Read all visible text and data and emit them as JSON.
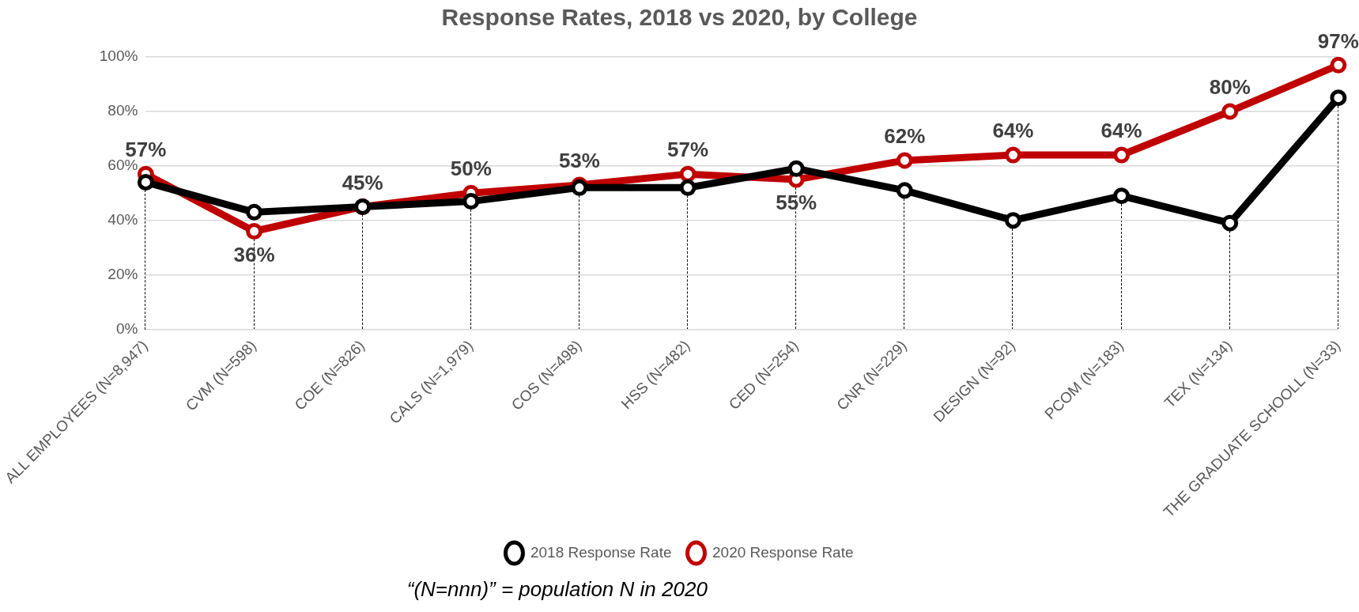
{
  "chart_data": {
    "type": "line",
    "title": "Response Rates, 2018 vs 2020, by College",
    "categories": [
      "ALL EMPLOYEES (N=8,947)",
      "CVM (N=598)",
      "COE (N=826)",
      "CALS (N=1,979)",
      "COS (N=498)",
      "HSS (N=482)",
      "CED (N=254)",
      "CNR (N=229)",
      "DESIGN (N=92)",
      "PCOM (N=183)",
      "TEX (N=134)",
      "THE GRADUATE SCHOOLL (N=33)"
    ],
    "series": [
      {
        "name": "2018 Response Rate",
        "color": "#000000",
        "values": [
          54,
          43,
          45,
          47,
          52,
          52,
          59,
          51,
          40,
          49,
          39,
          85
        ]
      },
      {
        "name": "2020 Response Rate",
        "color": "#c00000",
        "values": [
          57,
          36,
          45,
          50,
          53,
          57,
          55,
          62,
          64,
          64,
          80,
          97
        ],
        "value_labels": [
          "57%",
          "36%",
          "45%",
          "50%",
          "53%",
          "57%",
          "55%",
          "62%",
          "64%",
          "64%",
          "80%",
          "97%"
        ]
      }
    ],
    "ylim": [
      0,
      100
    ],
    "yticks": [
      {
        "value": 0,
        "label": "0%"
      },
      {
        "value": 20,
        "label": "20%"
      },
      {
        "value": 40,
        "label": "40%"
      },
      {
        "value": 60,
        "label": "60%"
      },
      {
        "value": 80,
        "label": "80%"
      },
      {
        "value": 100,
        "label": "100%"
      }
    ],
    "grid": "y",
    "legend": "bottom",
    "marker": "circle",
    "line_style": "solid",
    "annotations": [
      "“(N=nnn)” = population N in 2020"
    ]
  }
}
